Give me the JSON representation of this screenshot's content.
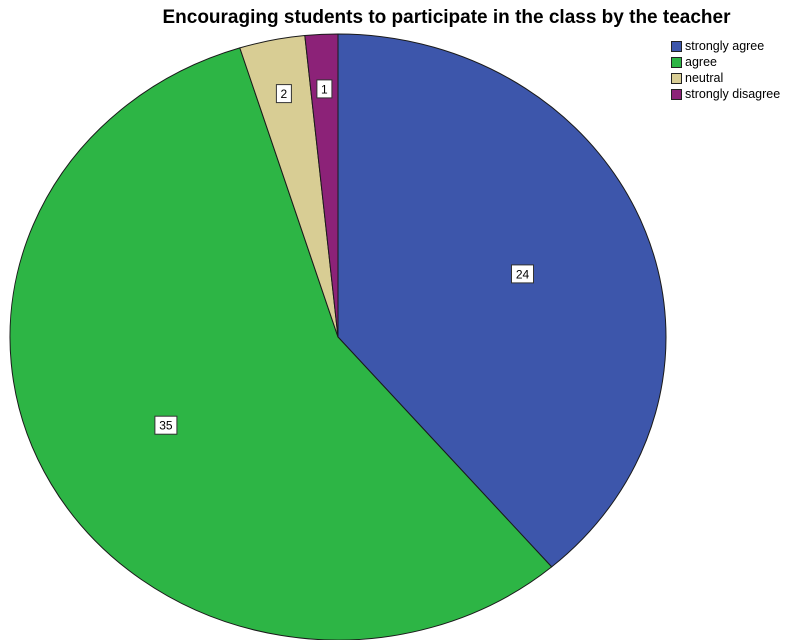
{
  "chart_data": {
    "type": "pie",
    "title": "Encouraging students to participate in the class by the teacher",
    "slices": [
      {
        "name": "strongly agree",
        "value": 24,
        "color": "#3d56ab"
      },
      {
        "name": "agree",
        "value": 35,
        "color": "#2db545"
      },
      {
        "name": "neutral",
        "value": 2,
        "color": "#d8cd94"
      },
      {
        "name": "strongly disagree",
        "value": 1,
        "color": "#8c2278"
      }
    ],
    "data_labels": "value",
    "start_angle": "12 o'clock",
    "direction": "clockwise",
    "legend": {
      "position": "top-right"
    }
  }
}
